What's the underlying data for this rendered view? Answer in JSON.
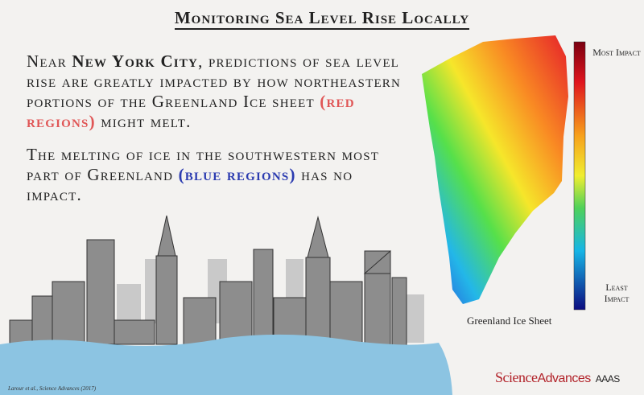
{
  "title": "Monitoring Sea Level Rise Locally",
  "paragraphs": [
    {
      "segments": [
        "Near ",
        "New York City",
        ", predictions of sea level rise are greatly impacted by how northeastern portions of the Greenland Ice sheet ",
        "(red regions)",
        " might melt."
      ]
    },
    {
      "segments": [
        "The melting of ice in the southwestern most part of Greenland ",
        "(blue regions)",
        " has no impact."
      ]
    }
  ],
  "colorbar": {
    "top_label": "Most Impact",
    "bottom_label": "Least Impact"
  },
  "map_caption": "Greenland Ice Sheet",
  "citation": "Larour et al., Science Advances (2017)",
  "logo": {
    "science": "Science",
    "advances": "Advances",
    "aaas": "AAAS"
  }
}
